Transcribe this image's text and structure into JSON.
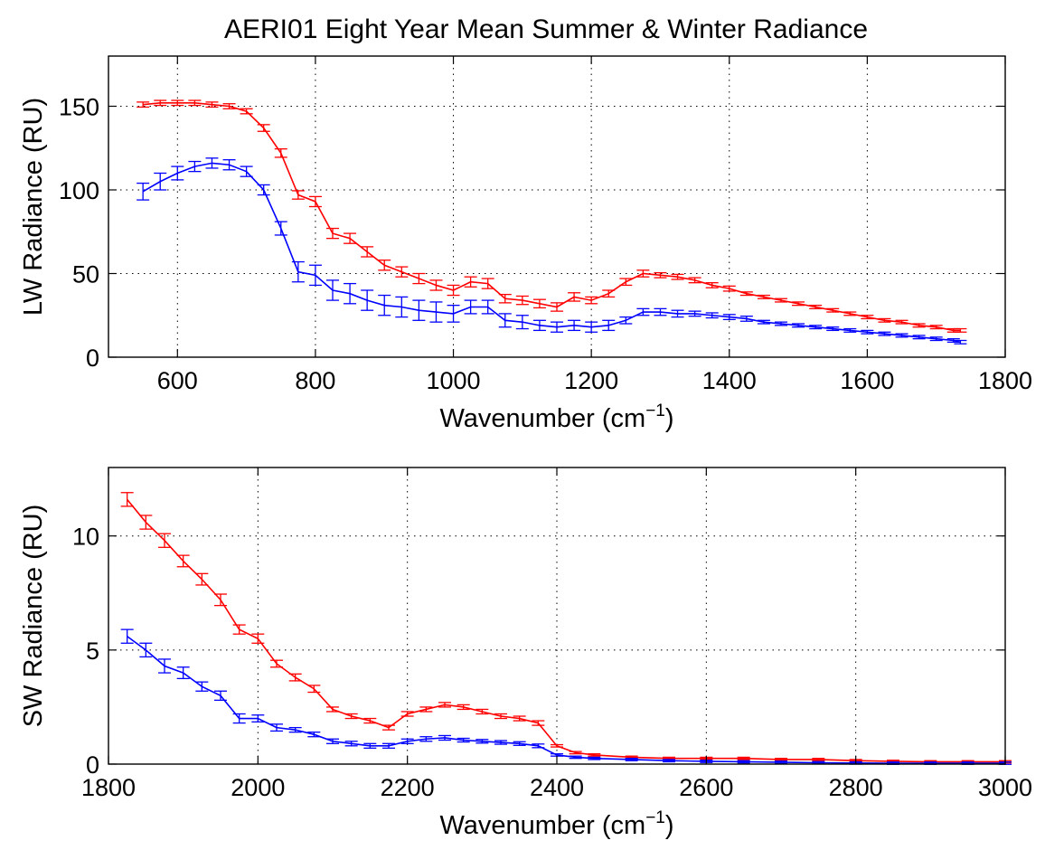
{
  "title": "AERI01 Eight Year Mean Summer & Winter Radiance",
  "colors": {
    "summer": "#ff0000",
    "winter": "#0000ff",
    "axis": "#000000",
    "grid": "#000000"
  },
  "chart_data": [
    {
      "type": "line",
      "xlabel": "Wavenumber (cm",
      "xlabel_sup": "−1",
      "xlabel_close": ")",
      "ylabel": "LW Radiance (RU)",
      "xlim": [
        500,
        1800
      ],
      "ylim": [
        0,
        180
      ],
      "xticks": [
        600,
        800,
        1000,
        1200,
        1400,
        1600,
        1800
      ],
      "yticks": [
        0,
        50,
        100,
        150
      ],
      "grid": true,
      "x": [
        550,
        575,
        600,
        625,
        650,
        675,
        700,
        725,
        750,
        775,
        800,
        825,
        850,
        875,
        900,
        925,
        950,
        975,
        1000,
        1025,
        1050,
        1075,
        1100,
        1125,
        1150,
        1175,
        1200,
        1225,
        1250,
        1275,
        1300,
        1325,
        1350,
        1375,
        1400,
        1425,
        1450,
        1475,
        1500,
        1525,
        1550,
        1575,
        1600,
        1625,
        1650,
        1675,
        1700,
        1725,
        1735
      ],
      "series": [
        {
          "color": "#ff0000",
          "values": [
            151,
            152,
            152,
            152,
            151,
            150,
            147,
            137,
            122,
            97,
            93,
            74,
            71,
            63,
            55,
            51,
            47,
            43,
            40,
            45,
            44,
            35,
            34,
            32,
            30,
            36,
            34,
            38,
            45,
            50,
            49,
            48,
            46,
            43,
            41,
            38,
            36,
            34,
            32,
            30,
            28,
            26,
            24,
            22,
            21,
            19,
            18,
            16,
            16
          ],
          "err": [
            1.5,
            1.5,
            1.5,
            1.5,
            1.5,
            1.5,
            1.5,
            2,
            2.5,
            2.5,
            3,
            3,
            3,
            3,
            3,
            3,
            3,
            3,
            3,
            3,
            3,
            2.5,
            2.5,
            2.5,
            2.5,
            2.5,
            2,
            2,
            2,
            2,
            1.5,
            1.5,
            1.5,
            1.5,
            1.5,
            1,
            1,
            1,
            1,
            1,
            1,
            1,
            1,
            1,
            1,
            1,
            1,
            1,
            1
          ]
        },
        {
          "color": "#0000ff",
          "values": [
            99,
            105,
            110,
            114,
            116,
            115,
            111,
            100,
            77,
            51,
            49,
            40,
            38,
            34,
            31,
            30,
            28,
            27,
            26,
            30,
            30,
            22,
            21,
            19,
            18,
            19,
            18,
            19,
            22,
            27,
            27,
            26,
            26,
            25,
            24,
            23,
            21,
            20,
            19,
            18,
            17,
            16,
            15,
            14,
            13,
            12,
            11,
            10,
            9
          ],
          "err": [
            5,
            5,
            4,
            3,
            3,
            3,
            3,
            3,
            4,
            6,
            6,
            6,
            6,
            6,
            6,
            6,
            6,
            6,
            5,
            4,
            4,
            4,
            4,
            3,
            3,
            3,
            3,
            3,
            2,
            2,
            2,
            2,
            1.5,
            1.5,
            1.5,
            1.5,
            1,
            1,
            1,
            1,
            1,
            1,
            1,
            1,
            1,
            1,
            1,
            1,
            1
          ]
        }
      ]
    },
    {
      "type": "line",
      "xlabel": "Wavenumber (cm",
      "xlabel_sup": "−1",
      "xlabel_close": ")",
      "ylabel": "SW Radiance (RU)",
      "xlim": [
        1800,
        3000
      ],
      "ylim": [
        0,
        13
      ],
      "xticks": [
        1800,
        2000,
        2200,
        2400,
        2600,
        2800,
        3000
      ],
      "yticks": [
        0,
        5,
        10
      ],
      "grid": true,
      "x": [
        1825,
        1850,
        1875,
        1900,
        1925,
        1950,
        1975,
        2000,
        2025,
        2050,
        2075,
        2100,
        2125,
        2150,
        2175,
        2200,
        2225,
        2250,
        2275,
        2300,
        2325,
        2350,
        2375,
        2400,
        2425,
        2450,
        2500,
        2550,
        2600,
        2650,
        2700,
        2750,
        2800,
        2850,
        2900,
        2950,
        3000
      ],
      "series": [
        {
          "color": "#ff0000",
          "values": [
            11.6,
            10.6,
            9.8,
            8.9,
            8.1,
            7.2,
            5.9,
            5.5,
            4.4,
            3.8,
            3.3,
            2.4,
            2.1,
            1.9,
            1.6,
            2.2,
            2.4,
            2.6,
            2.5,
            2.3,
            2.1,
            2.0,
            1.8,
            0.8,
            0.5,
            0.4,
            0.3,
            0.25,
            0.25,
            0.25,
            0.2,
            0.2,
            0.15,
            0.12,
            0.1,
            0.1,
            0.1
          ],
          "err": [
            0.3,
            0.3,
            0.3,
            0.25,
            0.25,
            0.25,
            0.2,
            0.2,
            0.15,
            0.15,
            0.15,
            0.1,
            0.1,
            0.1,
            0.1,
            0.1,
            0.1,
            0.1,
            0.1,
            0.1,
            0.1,
            0.1,
            0.1,
            0.05,
            0.05,
            0.05,
            0.05,
            0.05,
            0.05,
            0.05,
            0.05,
            0.05,
            0.05,
            0.05,
            0.05,
            0.05,
            0.05
          ]
        },
        {
          "color": "#0000ff",
          "values": [
            5.6,
            5.0,
            4.3,
            4.0,
            3.4,
            3.0,
            2.0,
            2.0,
            1.6,
            1.5,
            1.3,
            1.0,
            0.9,
            0.8,
            0.8,
            1.0,
            1.1,
            1.15,
            1.05,
            1.0,
            0.95,
            0.9,
            0.8,
            0.4,
            0.3,
            0.25,
            0.2,
            0.15,
            0.12,
            0.1,
            0.08,
            0.06,
            0.05,
            0.04,
            0.04,
            0.04,
            0.04
          ],
          "err": [
            0.3,
            0.3,
            0.3,
            0.25,
            0.2,
            0.2,
            0.2,
            0.15,
            0.15,
            0.1,
            0.1,
            0.1,
            0.1,
            0.1,
            0.1,
            0.1,
            0.1,
            0.1,
            0.08,
            0.08,
            0.08,
            0.08,
            0.08,
            0.05,
            0.05,
            0.05,
            0.05,
            0.05,
            0.05,
            0.05,
            0.05,
            0.05,
            0.05,
            0.05,
            0.05,
            0.05,
            0.05
          ]
        }
      ]
    }
  ]
}
